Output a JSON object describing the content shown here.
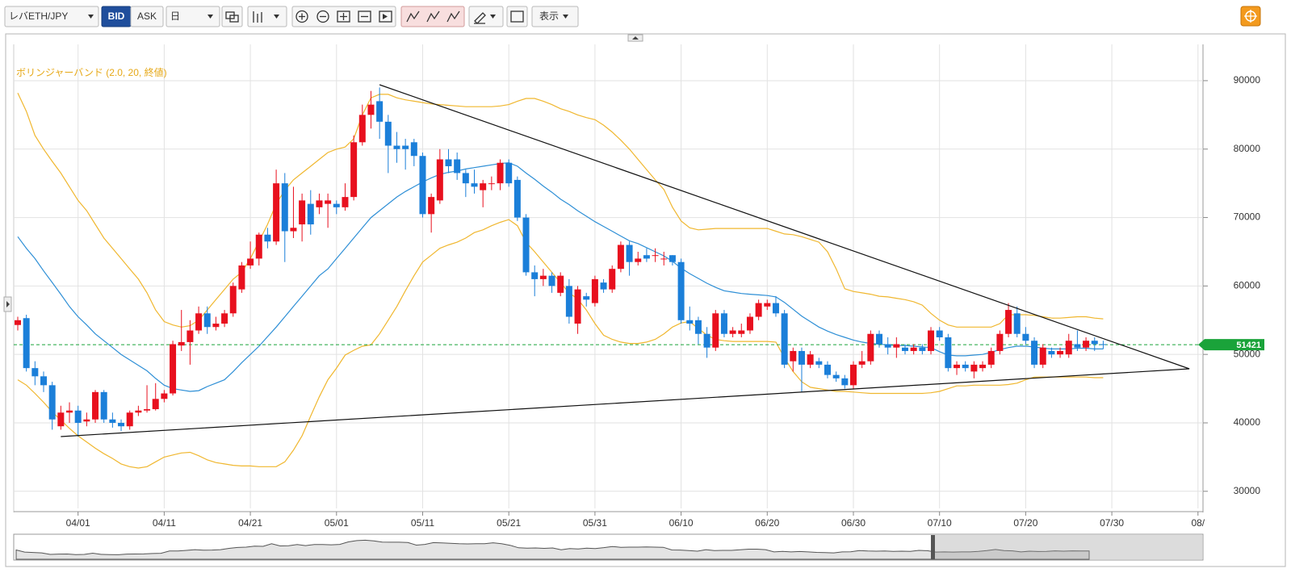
{
  "toolbar": {
    "symbol": "レバETH/JPY",
    "bid": "BID",
    "ask": "ASK",
    "period": "日",
    "view": "表示"
  },
  "chart_data": {
    "type": "candlestick",
    "annotation": "ボリンジャーバンド (2.0, 20, 終値)",
    "up_color": "#e8101e",
    "down_color": "#1b7fd9",
    "categories": [
      null,
      null,
      null,
      null,
      null,
      null,
      null,
      "04/01",
      null,
      null,
      null,
      null,
      null,
      null,
      null,
      null,
      null,
      "04/11",
      null,
      null,
      null,
      null,
      null,
      null,
      null,
      null,
      null,
      "04/21",
      null,
      null,
      null,
      null,
      null,
      null,
      null,
      null,
      null,
      "05/01",
      null,
      null,
      null,
      null,
      null,
      null,
      null,
      null,
      null,
      "05/11",
      null,
      null,
      null,
      null,
      null,
      null,
      null,
      null,
      null,
      "05/21",
      null,
      null,
      null,
      null,
      null,
      null,
      null,
      null,
      null,
      "05/31",
      null,
      null,
      null,
      null,
      null,
      null,
      null,
      null,
      null,
      "06/10",
      null,
      null,
      null,
      null,
      null,
      null,
      null,
      null,
      null,
      "06/20",
      null,
      null,
      null,
      null,
      null,
      null,
      null,
      null,
      null,
      "06/30",
      null,
      null,
      null,
      null,
      null,
      null,
      null,
      null,
      null,
      "07/10",
      null,
      null,
      null,
      null,
      null,
      null,
      null,
      null,
      null,
      "07/20",
      null,
      null,
      null,
      null,
      null,
      null,
      null,
      null,
      null,
      "07/30",
      null,
      null,
      null,
      null,
      null,
      null,
      null,
      null,
      null,
      "08/"
    ],
    "open": [
      54300,
      55300,
      48000,
      46800,
      45500,
      39500,
      41500,
      41800,
      40200,
      40500,
      44500,
      40500,
      40000,
      39500,
      41500,
      41800,
      42000,
      43500,
      44300,
      51300,
      51800,
      53500,
      56000,
      54000,
      54500,
      56000,
      59500,
      63000,
      64000,
      67500,
      66500,
      75000,
      68000,
      69000,
      72000,
      71500,
      72000,
      72000,
      71500,
      73000,
      81000,
      85000,
      87000,
      84000,
      80500,
      80500,
      81000,
      79000,
      70500,
      72500,
      78500,
      78500,
      76500,
      75000,
      74000,
      75000,
      75000,
      78000,
      75500,
      70000,
      62000,
      61000,
      61500,
      59000,
      60000,
      54500,
      58500,
      57500,
      60500,
      59500,
      62500,
      66000,
      63500,
      64500,
      64500,
      64000,
      64500,
      63500,
      55000,
      55000,
      53000,
      51000,
      56000,
      53000,
      53000,
      53500,
      55500,
      57000,
      57500,
      56000,
      49000,
      50500,
      48500,
      49000,
      48500,
      47000,
      46500,
      45500,
      48500,
      49000,
      53000,
      51500,
      51000,
      51000,
      50500,
      51000,
      50500,
      53500,
      52500,
      48000,
      48500,
      47500,
      48000,
      48500,
      50500,
      53000,
      56000,
      53000,
      52000,
      48500,
      50500,
      50000,
      50000,
      51500,
      51000,
      52000,
      51500,
      null,
      null,
      null,
      null,
      null,
      null,
      null,
      null,
      null,
      null,
      null
    ],
    "high": [
      55500,
      55800,
      49000,
      47500,
      46000,
      42500,
      43000,
      42500,
      41500,
      44800,
      44800,
      41500,
      40500,
      41800,
      42500,
      45500,
      45800,
      44800,
      52000,
      56500,
      55000,
      57000,
      57000,
      55500,
      56500,
      60500,
      63500,
      66500,
      67800,
      68500,
      77000,
      76500,
      74500,
      73500,
      74000,
      73500,
      73500,
      72500,
      75000,
      82000,
      86500,
      88500,
      89000,
      85000,
      82500,
      81500,
      81500,
      79500,
      73500,
      80000,
      80000,
      79500,
      77000,
      77000,
      75500,
      76000,
      78500,
      78500,
      76000,
      70500,
      63000,
      62500,
      62000,
      62000,
      61000,
      60000,
      59000,
      61500,
      61000,
      63000,
      66500,
      66500,
      65000,
      65500,
      65500,
      65000,
      64500,
      64000,
      57000,
      55500,
      54000,
      56500,
      56500,
      54000,
      54500,
      56000,
      58000,
      58000,
      58500,
      56500,
      51000,
      51000,
      50500,
      49500,
      49000,
      47500,
      47000,
      49000,
      50500,
      53500,
      53500,
      52500,
      52500,
      51500,
      51500,
      51500,
      54000,
      54000,
      53000,
      49000,
      49000,
      49000,
      49000,
      51000,
      53500,
      57500,
      57000,
      54000,
      52500,
      51500,
      51000,
      51000,
      53000,
      53500,
      52500,
      52500,
      52000,
      null,
      null,
      null,
      null,
      null,
      null,
      null,
      null,
      null,
      null,
      null
    ],
    "low": [
      53500,
      47500,
      45500,
      44500,
      39000,
      39000,
      40000,
      38000,
      39500,
      40000,
      40000,
      39300,
      38800,
      39000,
      41000,
      41500,
      41800,
      43000,
      44000,
      50500,
      48500,
      53000,
      53000,
      53500,
      54000,
      55500,
      59000,
      62500,
      63000,
      65500,
      66000,
      63500,
      67000,
      66500,
      67500,
      70500,
      68500,
      70500,
      71000,
      72500,
      80500,
      83000,
      81500,
      76500,
      78000,
      77000,
      77500,
      70000,
      67800,
      72000,
      76500,
      75500,
      73000,
      73500,
      71500,
      74000,
      74000,
      74500,
      69500,
      61500,
      58500,
      60000,
      59000,
      58500,
      54500,
      53000,
      57000,
      57000,
      59000,
      59000,
      62000,
      61500,
      63000,
      63500,
      63500,
      63000,
      63000,
      54500,
      53500,
      51500,
      49500,
      50500,
      52500,
      52500,
      52500,
      53000,
      55000,
      56500,
      55500,
      48000,
      47500,
      44500,
      48000,
      48000,
      46500,
      46000,
      45000,
      45000,
      48000,
      48500,
      51000,
      50000,
      49500,
      50000,
      50000,
      50000,
      50000,
      52000,
      47500,
      47000,
      47500,
      46500,
      47500,
      48000,
      50000,
      52500,
      52500,
      51500,
      48000,
      48000,
      49500,
      49500,
      49500,
      50500,
      50500,
      50500,
      50800,
      null,
      null,
      null,
      null,
      null,
      null,
      null,
      null,
      null,
      null,
      null
    ],
    "close": [
      55000,
      48000,
      46800,
      45500,
      40500,
      41500,
      41800,
      40000,
      40500,
      44500,
      40500,
      40000,
      39500,
      41500,
      41800,
      42000,
      43500,
      44300,
      51500,
      51800,
      53500,
      56000,
      54000,
      54500,
      56000,
      60000,
      63000,
      64000,
      67500,
      66500,
      75000,
      68000,
      68500,
      72500,
      69000,
      72500,
      72500,
      71500,
      73000,
      81000,
      85000,
      86500,
      84000,
      80500,
      80000,
      80000,
      79000,
      70500,
      73000,
      78500,
      77500,
      76500,
      75000,
      74500,
      75000,
      75000,
      78000,
      75000,
      70000,
      62000,
      61000,
      61500,
      60000,
      61500,
      55500,
      59500,
      58000,
      61000,
      59500,
      62500,
      66000,
      63500,
      64000,
      64000,
      64500,
      64000,
      63500,
      55000,
      54500,
      53000,
      51000,
      56000,
      53000,
      53500,
      53500,
      55500,
      57500,
      57500,
      56000,
      48500,
      50500,
      48500,
      50000,
      48500,
      47000,
      46500,
      45500,
      48500,
      49000,
      53000,
      51500,
      51000,
      51500,
      50500,
      51000,
      50500,
      53500,
      52500,
      48000,
      48500,
      48000,
      48500,
      48500,
      50500,
      53000,
      56500,
      53000,
      52000,
      48500,
      51000,
      50000,
      50500,
      52000,
      51000,
      52000,
      51500,
      51421,
      null,
      null,
      null,
      null,
      null,
      null,
      null,
      null,
      null,
      null,
      null
    ],
    "bands": {
      "color": "#f0b72f",
      "middle_color": "#2e8fd6",
      "upper": [
        88200,
        85500,
        82000,
        80000,
        78200,
        76500,
        74500,
        72500,
        71000,
        69000,
        67000,
        65500,
        64000,
        62500,
        61000,
        59000,
        56500,
        54800,
        54300,
        54000,
        54200,
        55000,
        56500,
        58000,
        59500,
        61000,
        62000,
        64000,
        66500,
        69000,
        72000,
        74000,
        75500,
        76500,
        77500,
        78500,
        79500,
        80000,
        80300,
        81500,
        85000,
        87500,
        88000,
        88000,
        87500,
        87200,
        87000,
        86800,
        86600,
        86500,
        86400,
        86300,
        86200,
        86200,
        86200,
        86200,
        86300,
        86500,
        87000,
        87400,
        87400,
        87000,
        86500,
        85900,
        85500,
        85000,
        84600,
        84300,
        83500,
        82500,
        81300,
        80000,
        78500,
        77000,
        75500,
        74100,
        71500,
        69500,
        68500,
        68200,
        68300,
        68400,
        68400,
        68400,
        68400,
        68400,
        68400,
        68400,
        68000,
        67600,
        67500,
        67200,
        66800,
        66400,
        65000,
        62500,
        59600,
        59200,
        59000,
        58800,
        58500,
        58400,
        58200,
        58000,
        57700,
        57200,
        56000,
        55000,
        54300,
        54000,
        54000,
        54000,
        54000,
        54000,
        54500,
        55800,
        55800,
        55800,
        55700,
        55500,
        55300,
        55300,
        55400,
        55500,
        55500,
        55300,
        55200,
        null,
        null,
        null,
        null,
        null,
        null,
        null,
        null,
        null,
        null,
        null
      ],
      "middle": [
        67200,
        65500,
        64000,
        62200,
        60500,
        58800,
        57000,
        55500,
        54300,
        53000,
        52000,
        51000,
        50000,
        49200,
        48400,
        47600,
        46500,
        45500,
        45000,
        44800,
        44600,
        44700,
        45300,
        45800,
        46300,
        47500,
        48800,
        50000,
        51200,
        52600,
        54000,
        55500,
        57000,
        58500,
        60000,
        61500,
        62500,
        64000,
        65500,
        67000,
        68500,
        70000,
        71000,
        72000,
        73000,
        73800,
        74500,
        75200,
        75800,
        76300,
        76600,
        76800,
        77100,
        77300,
        77500,
        77700,
        77900,
        78000,
        77500,
        76500,
        75600,
        74600,
        73700,
        72700,
        71900,
        71000,
        70200,
        69400,
        68700,
        68000,
        67300,
        66600,
        66200,
        65600,
        65000,
        64400,
        63600,
        62600,
        61800,
        61100,
        60400,
        59800,
        59300,
        59100,
        58900,
        58800,
        58700,
        58600,
        58400,
        57600,
        56600,
        55600,
        54800,
        54000,
        53400,
        52900,
        52500,
        52100,
        51800,
        51600,
        51500,
        51400,
        51300,
        51300,
        51200,
        51100,
        51000,
        50400,
        49900,
        49800,
        49800,
        49900,
        50000,
        50300,
        50700,
        51000,
        51200,
        51200,
        51100,
        50900,
        50800,
        50800,
        50800,
        50900,
        50900,
        50800,
        50800,
        null,
        null,
        null,
        null,
        null,
        null,
        null,
        null,
        null,
        null,
        null
      ],
      "lower": [
        46300,
        45500,
        44300,
        43000,
        41600,
        40400,
        39200,
        38100,
        37200,
        36300,
        35500,
        34800,
        34000,
        33600,
        33400,
        33600,
        34300,
        35000,
        35300,
        35600,
        35700,
        35200,
        34600,
        34200,
        34000,
        33800,
        33700,
        33700,
        33600,
        33600,
        33600,
        34300,
        36000,
        38100,
        41000,
        43800,
        46300,
        48000,
        49900,
        50600,
        51200,
        51400,
        53000,
        55000,
        57000,
        59300,
        61500,
        63500,
        64500,
        65500,
        66000,
        66400,
        67000,
        67800,
        68200,
        68800,
        69300,
        69700,
        68800,
        66400,
        65000,
        63500,
        62000,
        60500,
        59000,
        58100,
        56500,
        54500,
        52800,
        52200,
        51800,
        51600,
        51600,
        51800,
        52200,
        53000,
        54000,
        54600,
        54800,
        53800,
        52800,
        52200,
        52000,
        51900,
        51900,
        51900,
        51900,
        51900,
        51800,
        49500,
        47500,
        46000,
        45200,
        45000,
        44800,
        44600,
        44600,
        44500,
        44400,
        44300,
        44300,
        44300,
        44300,
        44300,
        44300,
        44300,
        44400,
        44600,
        45000,
        45400,
        45400,
        45500,
        45500,
        45500,
        45500,
        45600,
        45800,
        46300,
        46700,
        46700,
        46700,
        46700,
        46700,
        46700,
        46700,
        46600,
        46600,
        null,
        null,
        null,
        null,
        null,
        null,
        null,
        null,
        null,
        null,
        null
      ]
    },
    "trendlines": [
      {
        "x": [
          "05/06",
          "08/08"
        ],
        "values": [
          89400,
          47900
        ],
        "color": "#111111"
      },
      {
        "x": [
          "03/30",
          "08/08"
        ],
        "values": [
          38000,
          47900
        ],
        "color": "#111111"
      }
    ],
    "last_price": 51421,
    "last_price_color": "#1aa33a",
    "ylim": [
      27500,
      95300
    ],
    "yticks": [
      30000,
      40000,
      50000,
      60000,
      70000,
      80000,
      90000
    ],
    "grid": true
  }
}
